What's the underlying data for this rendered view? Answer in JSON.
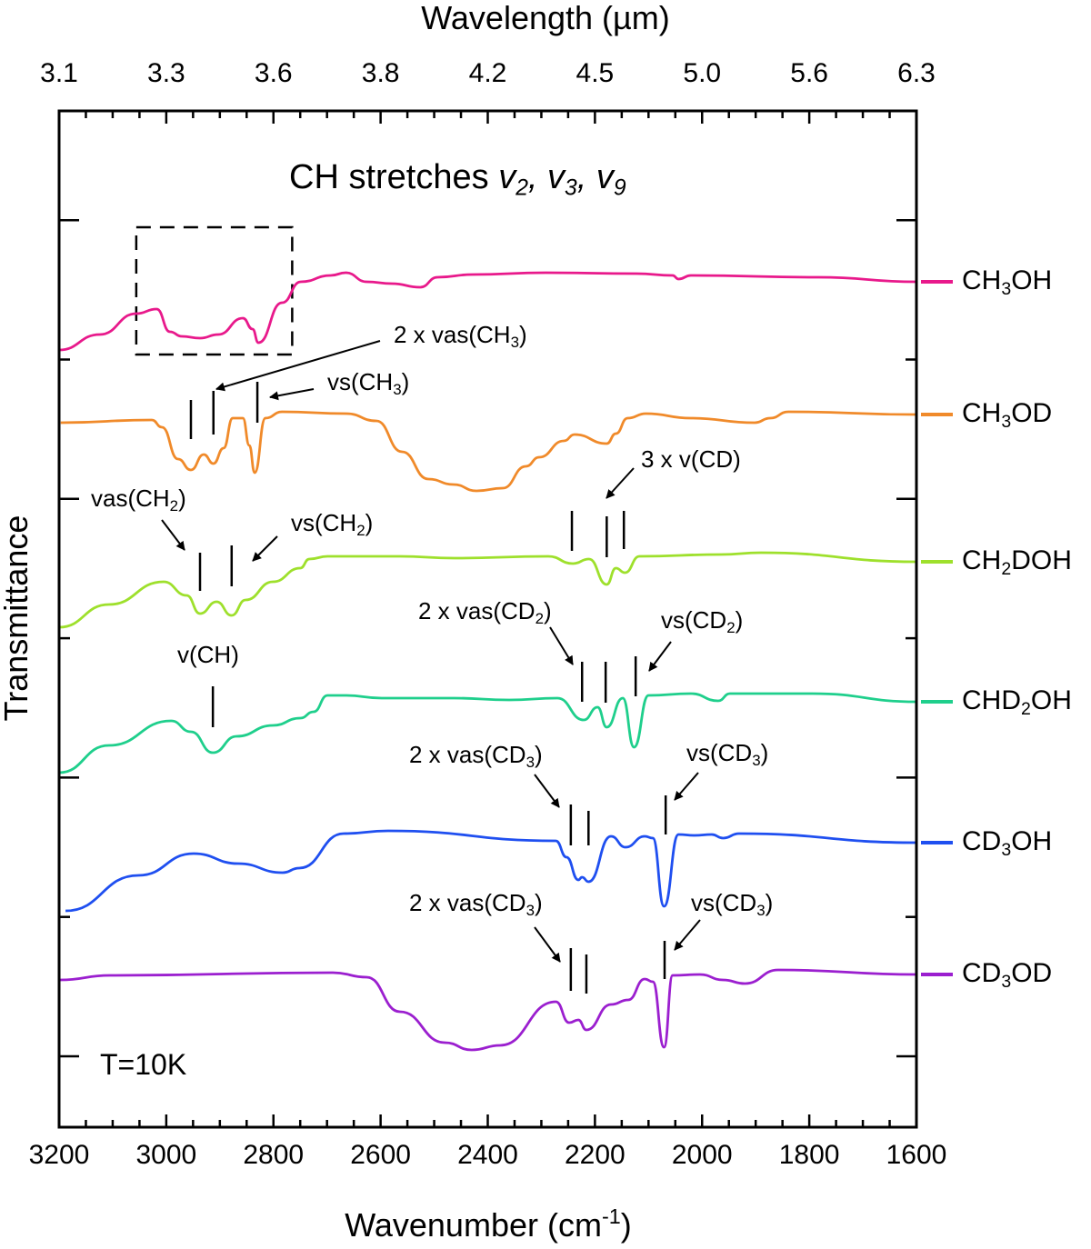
{
  "chart_data": {
    "type": "line",
    "title": {
      "prefix": "CH stretches",
      "modes": [
        {
          "symbol": "v",
          "sub": "2",
          "sep": ","
        },
        {
          "symbol": "v",
          "sub": "3",
          "sep": ","
        },
        {
          "symbol": "v",
          "sub": "9",
          "sep": ""
        }
      ]
    },
    "xlabel": {
      "text": "Wavenumber (cm",
      "sup": "-1",
      "close": ")"
    },
    "ylabel": "Transmittance",
    "top_xlabel": "Wavelength (µm)",
    "xlim": [
      3200,
      1600
    ],
    "x_reversed": true,
    "ylim": [
      0,
      111.8
    ],
    "y_tick_labels_shown": false,
    "grid": false,
    "legend_placement": "right, beside each curve",
    "x_ticks": [
      3200,
      3000,
      2800,
      2600,
      2400,
      2200,
      2000,
      1800,
      1600
    ],
    "x_tick_labels": [
      "3200",
      "3000",
      "2800",
      "2600",
      "2400",
      "2200",
      "2000",
      "1800",
      "1600"
    ],
    "top_tick_labels": [
      "3.1",
      "3.3",
      "3.6",
      "3.8",
      "4.2",
      "4.5",
      "5.0",
      "5.6",
      "6.3"
    ],
    "annotation_temperature": "T=10K",
    "highlight_box": {
      "wn": [
        3056,
        2765
      ],
      "T": [
        85.0,
        99.0
      ],
      "style": "dashed"
    },
    "series": [
      {
        "name": "CH3OH",
        "label": {
          "pre": "CH",
          "sub": "3",
          "post": "OH"
        },
        "color": "#e8198b",
        "points": [
          [
            3200,
            85.5
          ],
          [
            3124,
            87.2
          ],
          [
            3056,
            89.5
          ],
          [
            3018,
            90.0
          ],
          [
            2993,
            87.5
          ],
          [
            2971,
            87.0
          ],
          [
            2937,
            86.8
          ],
          [
            2903,
            87.2
          ],
          [
            2857,
            89.0
          ],
          [
            2839,
            87.8
          ],
          [
            2828,
            86.3
          ],
          [
            2784,
            90.7
          ],
          [
            2749,
            93.0
          ],
          [
            2693,
            93.7
          ],
          [
            2665,
            94.0
          ],
          [
            2626,
            93.0
          ],
          [
            2579,
            92.8
          ],
          [
            2526,
            92.4
          ],
          [
            2494,
            93.5
          ],
          [
            2428,
            93.8
          ],
          [
            2292,
            94.0
          ],
          [
            2122,
            93.9
          ],
          [
            2055,
            93.7
          ],
          [
            2044,
            93.3
          ],
          [
            2021,
            93.7
          ],
          [
            1783,
            93.5
          ],
          [
            1600,
            93.0
          ]
        ]
      },
      {
        "name": "CH3OD",
        "label": {
          "pre": "CH",
          "sub": "3",
          "post": "OD"
        },
        "color": "#f08a2a",
        "points": [
          [
            3197,
            77.5
          ],
          [
            3027,
            77.8
          ],
          [
            3008,
            77.0
          ],
          [
            2978,
            73.5
          ],
          [
            2954,
            72.3
          ],
          [
            2930,
            74.0
          ],
          [
            2912,
            73.0
          ],
          [
            2893,
            74.7
          ],
          [
            2876,
            78.0
          ],
          [
            2857,
            78.0
          ],
          [
            2845,
            75.0
          ],
          [
            2835,
            72.0
          ],
          [
            2815,
            78.0
          ],
          [
            2784,
            78.7
          ],
          [
            2664,
            78.5
          ],
          [
            2608,
            77.7
          ],
          [
            2560,
            74.3
          ],
          [
            2511,
            71.3
          ],
          [
            2464,
            70.7
          ],
          [
            2421,
            70.0
          ],
          [
            2372,
            70.3
          ],
          [
            2329,
            72.7
          ],
          [
            2304,
            73.7
          ],
          [
            2258,
            75.5
          ],
          [
            2238,
            76.2
          ],
          [
            2178,
            75.2
          ],
          [
            2161,
            76.3
          ],
          [
            2139,
            78.0
          ],
          [
            2105,
            78.5
          ],
          [
            2021,
            78.0
          ],
          [
            1902,
            77.5
          ],
          [
            1873,
            78.0
          ],
          [
            1839,
            78.7
          ],
          [
            1601,
            78.4
          ]
        ]
      },
      {
        "name": "CH2DOH",
        "label": {
          "pre": "CH",
          "sub": "2",
          "post": "DOH"
        },
        "color": "#9ee02c",
        "points": [
          [
            3200,
            55.0
          ],
          [
            3107,
            57.5
          ],
          [
            3005,
            60.0
          ],
          [
            2962,
            58.5
          ],
          [
            2937,
            56.5
          ],
          [
            2906,
            57.8
          ],
          [
            2878,
            56.3
          ],
          [
            2852,
            58.0
          ],
          [
            2801,
            60.0
          ],
          [
            2750,
            61.5
          ],
          [
            2733,
            62.5
          ],
          [
            2699,
            62.8
          ],
          [
            2564,
            62.8
          ],
          [
            2462,
            62.6
          ],
          [
            2287,
            62.8
          ],
          [
            2241,
            62.0
          ],
          [
            2211,
            62.5
          ],
          [
            2178,
            59.7
          ],
          [
            2161,
            61.5
          ],
          [
            2144,
            61.0
          ],
          [
            2117,
            62.8
          ],
          [
            1965,
            63.0
          ],
          [
            1890,
            63.2
          ],
          [
            1599,
            62.2
          ]
        ]
      },
      {
        "name": "CHD2OH",
        "label": {
          "pre": "CHD",
          "sub": "2",
          "post": "OH"
        },
        "color": "#1fcf8c",
        "points": [
          [
            3200,
            39.0
          ],
          [
            3107,
            42.0
          ],
          [
            2991,
            44.7
          ],
          [
            2954,
            43.5
          ],
          [
            2913,
            41.2
          ],
          [
            2869,
            43.0
          ],
          [
            2801,
            44.2
          ],
          [
            2750,
            45.0
          ],
          [
            2725,
            45.7
          ],
          [
            2699,
            47.5
          ],
          [
            2665,
            47.5
          ],
          [
            2598,
            47.2
          ],
          [
            2462,
            47.2
          ],
          [
            2360,
            47.0
          ],
          [
            2270,
            47.2
          ],
          [
            2221,
            44.8
          ],
          [
            2195,
            46.2
          ],
          [
            2178,
            44.0
          ],
          [
            2148,
            47.2
          ],
          [
            2127,
            41.8
          ],
          [
            2100,
            47.5
          ],
          [
            2021,
            47.7
          ],
          [
            1970,
            46.9
          ],
          [
            1948,
            47.7
          ],
          [
            1795,
            47.7
          ],
          [
            1599,
            46.8
          ]
        ]
      },
      {
        "name": "CD3OH",
        "label": {
          "pre": "CD",
          "sub": "3",
          "post": "OH"
        },
        "color": "#1f4ff0",
        "points": [
          [
            3188,
            23.8
          ],
          [
            3052,
            27.7
          ],
          [
            2949,
            30.1
          ],
          [
            2866,
            29.0
          ],
          [
            2783,
            28.0
          ],
          [
            2752,
            28.5
          ],
          [
            2669,
            32.3
          ],
          [
            2586,
            32.6
          ],
          [
            2273,
            31.5
          ],
          [
            2253,
            29.7
          ],
          [
            2231,
            27.2
          ],
          [
            2224,
            27.5
          ],
          [
            2212,
            27.0
          ],
          [
            2170,
            32.0
          ],
          [
            2143,
            30.8
          ],
          [
            2107,
            32.0
          ],
          [
            2092,
            31.8
          ],
          [
            2071,
            24.3
          ],
          [
            2044,
            32.2
          ],
          [
            2014,
            32.1
          ],
          [
            1982,
            32.2
          ],
          [
            1961,
            31.8
          ],
          [
            1931,
            32.3
          ],
          [
            1598,
            31.3
          ]
        ]
      },
      {
        "name": "CD3OD",
        "label": {
          "pre": "CD",
          "sub": "3",
          "post": "OD"
        },
        "color": "#9b1fcf",
        "points": [
          [
            3198,
            16.2
          ],
          [
            3105,
            16.7
          ],
          [
            2689,
            17.0
          ],
          [
            2626,
            16.5
          ],
          [
            2564,
            12.7
          ],
          [
            2480,
            9.3
          ],
          [
            2430,
            8.5
          ],
          [
            2377,
            9.0
          ],
          [
            2273,
            13.8
          ],
          [
            2248,
            11.5
          ],
          [
            2231,
            11.8
          ],
          [
            2216,
            10.7
          ],
          [
            2170,
            13.5
          ],
          [
            2138,
            14.0
          ],
          [
            2107,
            16.3
          ],
          [
            2092,
            16.0
          ],
          [
            2071,
            8.8
          ],
          [
            2055,
            16.7
          ],
          [
            2004,
            16.8
          ],
          [
            1961,
            16.2
          ],
          [
            1920,
            15.8
          ],
          [
            1858,
            17.3
          ],
          [
            1598,
            16.8
          ]
        ]
      }
    ],
    "markers": [
      {
        "wn": 2954,
        "T": [
          75.7,
          80.0
        ]
      },
      {
        "wn": 2912,
        "T": [
          76.2,
          81.0
        ]
      },
      {
        "wn": 2830,
        "T": [
          77.5,
          82.0
        ]
      },
      {
        "wn": 2937,
        "T": [
          59.0,
          63.2
        ]
      },
      {
        "wn": 2878,
        "T": [
          59.5,
          64.0
        ]
      },
      {
        "wn": 2243,
        "T": [
          63.4,
          67.8
        ]
      },
      {
        "wn": 2178,
        "T": [
          62.7,
          67.2
        ]
      },
      {
        "wn": 2146,
        "T": [
          63.6,
          67.8
        ]
      },
      {
        "wn": 2913,
        "T": [
          44.0,
          48.5
        ]
      },
      {
        "wn": 2224,
        "T": [
          46.8,
          51.2
        ]
      },
      {
        "wn": 2180,
        "T": [
          46.7,
          51.2
        ]
      },
      {
        "wn": 2124,
        "T": [
          47.4,
          51.8
        ]
      },
      {
        "wn": 2245,
        "T": [
          31.0,
          35.5
        ]
      },
      {
        "wn": 2212,
        "T": [
          31.0,
          34.8
        ]
      },
      {
        "wn": 2068,
        "T": [
          32.2,
          36.5
        ]
      },
      {
        "wn": 2245,
        "T": [
          15.0,
          19.7
        ]
      },
      {
        "wn": 2216,
        "T": [
          14.7,
          19.0
        ]
      },
      {
        "wn": 2070,
        "T": [
          16.3,
          20.5
        ]
      }
    ],
    "annotations": [
      {
        "pre": "2 x vas(CH",
        "sub": "3",
        "post": ")"
      },
      {
        "pre": "vs(CH",
        "sub": "3",
        "post": ")"
      },
      {
        "pre": "3 x v(CD)",
        "sub": "",
        "post": ""
      },
      {
        "pre": "vas(CH",
        "sub": "2",
        "post": ")"
      },
      {
        "pre": "vs(CH",
        "sub": "2",
        "post": ")"
      },
      {
        "pre": "v(CH)",
        "sub": "",
        "post": ""
      },
      {
        "pre": "2 x vas(CD",
        "sub": "2",
        "post": ")"
      },
      {
        "pre": "vs(CD",
        "sub": "2",
        "post": ")"
      },
      {
        "pre": "2 x vas(CD",
        "sub": "3",
        "post": ")"
      },
      {
        "pre": "vs(CD",
        "sub": "3",
        "post": ")"
      },
      {
        "pre": "2 x vas(CD",
        "sub": "3",
        "post": ")"
      },
      {
        "pre": "vs(CD",
        "sub": "3",
        "post": ")"
      }
    ]
  }
}
